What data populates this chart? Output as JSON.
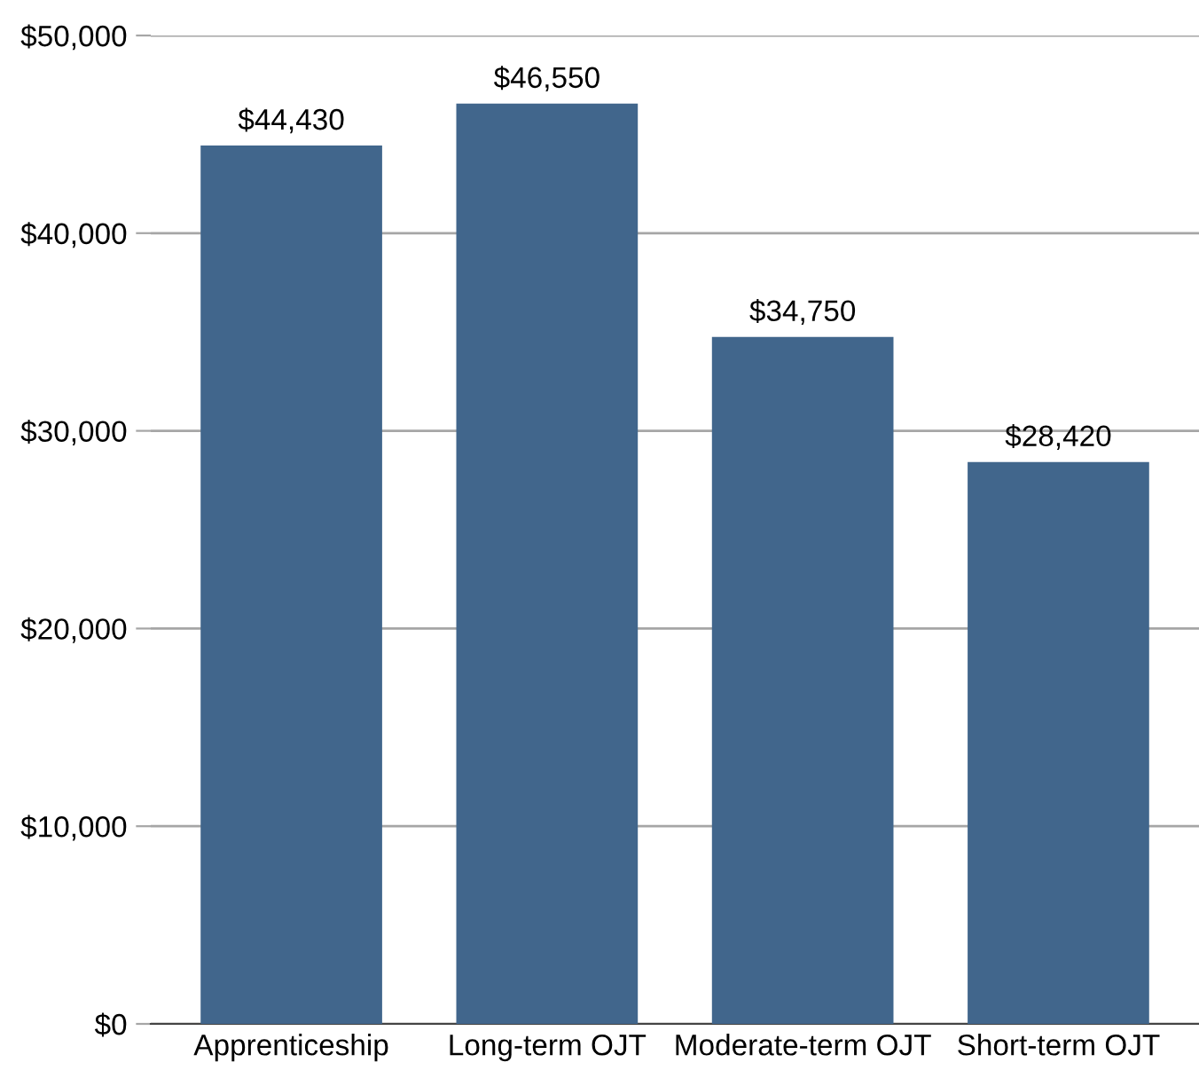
{
  "chart_data": {
    "type": "bar",
    "categories": [
      "Apprenticeship",
      "Long-term OJT",
      "Moderate-term OJT",
      "Short-term OJT"
    ],
    "values": [
      44430,
      46550,
      34750,
      28420
    ],
    "value_labels": [
      "$44,430",
      "$46,550",
      "$34,750",
      "$28,420"
    ],
    "color": "#41668c",
    "ylim": [
      0,
      50000
    ],
    "yticks": [
      {
        "value": 0,
        "label": "$0"
      },
      {
        "value": 10000,
        "label": "$10,000"
      },
      {
        "value": 20000,
        "label": "$20,000"
      },
      {
        "value": 30000,
        "label": "$30,000"
      },
      {
        "value": 40000,
        "label": "$40,000"
      },
      {
        "value": 50000,
        "label": "$50,000"
      }
    ],
    "grid": "y",
    "legend": false
  }
}
